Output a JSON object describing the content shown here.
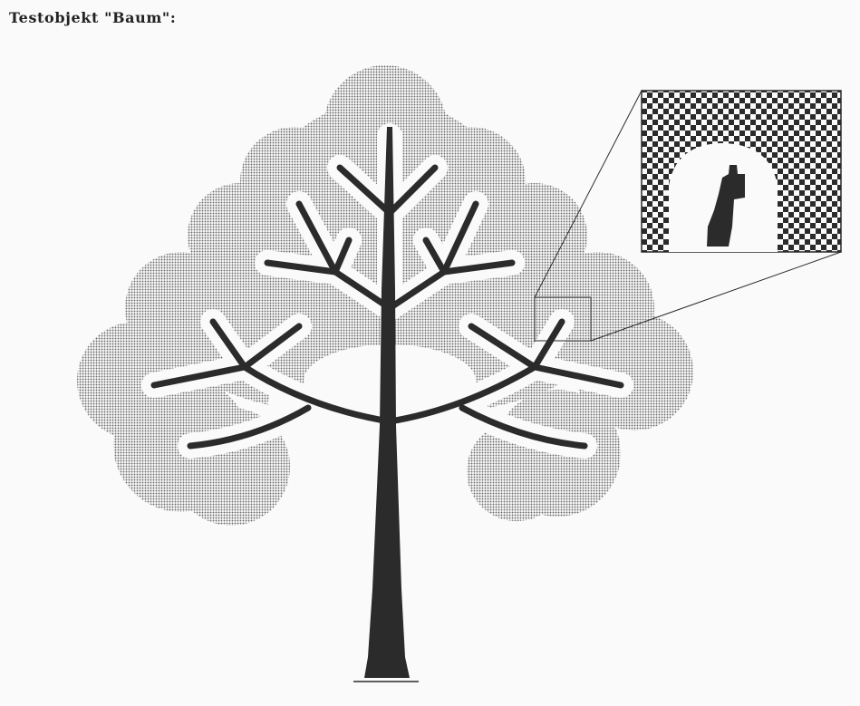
{
  "title": "Testobjekt \"Baum\":",
  "figure": {
    "subject": "tree",
    "crown_pattern": "dotted-halftone",
    "zoom_pattern": "checkerboard",
    "colors": {
      "paper": "#fafafa",
      "ink": "#2b2b2b",
      "halftone_dot": "#6a6a6a"
    }
  }
}
